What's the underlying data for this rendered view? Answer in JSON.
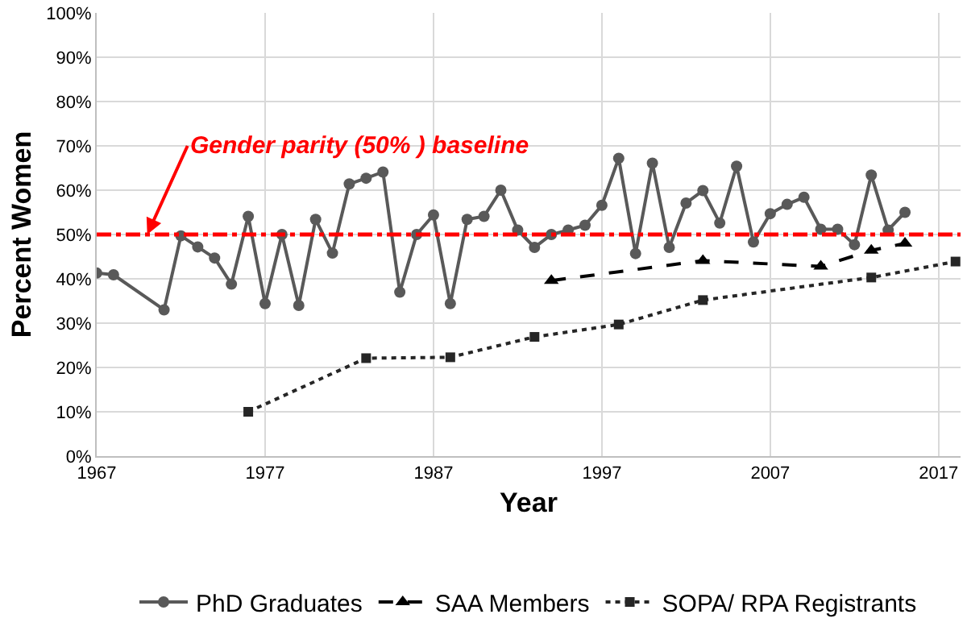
{
  "chart_data": {
    "type": "line",
    "xlabel": "Year",
    "ylabel": "Percent Women",
    "xlim": [
      1967,
      2018.3
    ],
    "xticks": [
      1967,
      1977,
      1987,
      1997,
      2007,
      2017
    ],
    "ylim": [
      0,
      100
    ],
    "yticks": [
      {
        "value": 0,
        "label": "0%"
      },
      {
        "value": 10,
        "label": "10%"
      },
      {
        "value": 20,
        "label": "20%"
      },
      {
        "value": 30,
        "label": "30%"
      },
      {
        "value": 40,
        "label": "40%"
      },
      {
        "value": 50,
        "label": "50%"
      },
      {
        "value": 60,
        "label": "60%"
      },
      {
        "value": 70,
        "label": "70%"
      },
      {
        "value": 80,
        "label": "80%"
      },
      {
        "value": 90,
        "label": "90%"
      },
      {
        "value": 100,
        "label": "100%"
      }
    ],
    "grid": true,
    "legend": "bottom",
    "ref_lines": [
      {
        "axis": "y",
        "value": 50,
        "label": "Gender parity (50% ) baseline",
        "color": "#ff0000",
        "line_style": "dashdot"
      }
    ],
    "series": [
      {
        "name": "PhD Graduates",
        "color": "#595959",
        "marker": "circle",
        "line_style": "solid",
        "x": [
          1967,
          1968,
          1971,
          1972,
          1973,
          1974,
          1975,
          1976,
          1977,
          1978,
          1979,
          1980,
          1981,
          1982,
          1983,
          1984,
          1985,
          1986,
          1987,
          1988,
          1989,
          1990,
          1991,
          1992,
          1993,
          1994,
          1995,
          1996,
          1997,
          1998,
          1999,
          2000,
          2001,
          2002,
          2003,
          2004,
          2005,
          2006,
          2007,
          2008,
          2009,
          2010,
          2011,
          2012,
          2013,
          2014,
          2015
        ],
        "values": [
          41.3,
          40.9,
          33.0,
          49.7,
          47.2,
          44.7,
          38.8,
          54.1,
          34.4,
          50,
          34.0,
          53.4,
          45.8,
          61.4,
          62.7,
          64.1,
          37.0,
          50,
          54.4,
          34.4,
          53.4,
          54.1,
          60.0,
          51.0,
          47.1,
          50,
          51.0,
          52.1,
          56.6,
          67.2,
          45.7,
          66.1,
          47.1,
          57.1,
          59.9,
          52.6,
          65.4,
          48.3,
          54.7,
          56.8,
          58.4,
          51.2,
          51.2,
          47.7,
          63.4,
          51.0,
          55.0
        ]
      },
      {
        "name": "SAA Members",
        "color": "#000000",
        "marker": "triangle",
        "line_style": "dashed",
        "x": [
          1994,
          2003,
          2010,
          2013,
          2015
        ],
        "values": [
          39.6,
          44.1,
          42.8,
          46.4,
          48.0
        ]
      },
      {
        "name": "SOPA/ RPA Registrants",
        "color": "#262626",
        "marker": "square",
        "line_style": "dotted",
        "x": [
          1976,
          1983,
          1988,
          1993,
          1998,
          2003,
          2013,
          2018
        ],
        "values": [
          10,
          22.1,
          22.3,
          26.9,
          29.7,
          35.2,
          40.3,
          43.9
        ]
      }
    ]
  }
}
